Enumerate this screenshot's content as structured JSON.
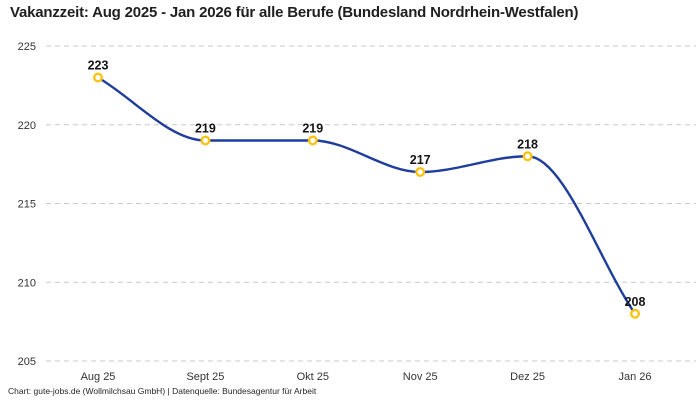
{
  "title": "Vakanzzeit: Aug 2025 - Jan 2026 für alle Berufe (Bundesland Nordrhein-Westfalen)",
  "footer": "Chart: gute-jobs.de (Wollmilchsau GmbH) | Datenquelle: Bundesagentur für Arbeit",
  "chart_data": {
    "type": "line",
    "title": "Vakanzzeit: Aug 2025 - Jan 2026 für alle Berufe (Bundesland Nordrhein-Westfalen)",
    "categories": [
      "Aug 25",
      "Sept 25",
      "Okt 25",
      "Nov 25",
      "Dez 25",
      "Jan 26"
    ],
    "values": [
      223,
      219,
      219,
      217,
      218,
      208
    ],
    "data_labels": [
      "223",
      "219",
      "219",
      "217",
      "218",
      "208"
    ],
    "yticks": [
      225,
      220,
      215,
      210,
      205
    ],
    "ylim": [
      205,
      225
    ],
    "xlabel": "",
    "ylabel": "",
    "grid": "horizontal-dashed",
    "legend": "none",
    "colors": {
      "line": "#1f3d9c",
      "marker_ring": "#ffc20e",
      "marker_fill": "#ffffff",
      "gridline": "#c9c9c9",
      "axis_text": "#333333",
      "data_label_text": "#141414"
    }
  }
}
